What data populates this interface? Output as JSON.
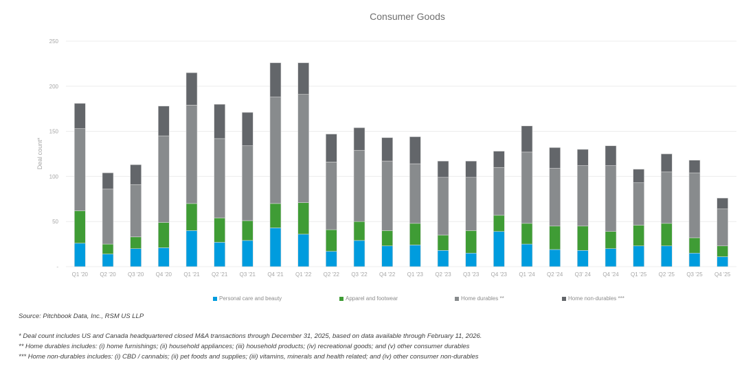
{
  "chart_data": {
    "type": "bar",
    "stacked": true,
    "title": "Consumer Goods",
    "xlabel": "",
    "ylabel": "Deal count*",
    "ylim": [
      0,
      250
    ],
    "yticks": [
      0,
      50,
      100,
      150,
      200,
      250
    ],
    "ytick_labels": [
      "-",
      "50",
      "100",
      "150",
      "200",
      "250"
    ],
    "grid": true,
    "legend_position": "bottom",
    "categories": [
      "Q1 '20",
      "Q2 '20",
      "Q3 '20",
      "Q4 '20",
      "Q1 '21",
      "Q2 '21",
      "Q3 '21",
      "Q4 '21",
      "Q1 '22",
      "Q2 '22",
      "Q3 '22",
      "Q4 '22",
      "Q1 '23",
      "Q2 '23",
      "Q3 '23",
      "Q4 '23",
      "Q1 '24",
      "Q2 '24",
      "Q3' 24",
      "Q4 '24",
      "Q1 '25",
      "Q2 '25",
      "Q3 '25",
      "Q4 '25"
    ],
    "series": [
      {
        "name": "Personal care and beauty",
        "color": "#009cde",
        "values": [
          26,
          14,
          20,
          21,
          40,
          27,
          29,
          43,
          36,
          17,
          29,
          23,
          24,
          18,
          15,
          39,
          25,
          19,
          18,
          20,
          23,
          23,
          15,
          11
        ]
      },
      {
        "name": "Apparel and footwear",
        "color": "#3f9c35",
        "values": [
          36,
          11,
          13,
          28,
          30,
          27,
          22,
          27,
          35,
          24,
          21,
          17,
          24,
          17,
          25,
          18,
          23,
          26,
          27,
          19,
          23,
          25,
          17,
          12
        ]
      },
      {
        "name": "Home durables **",
        "color": "#888b8d",
        "values": [
          91,
          61,
          58,
          96,
          109,
          88,
          83,
          118,
          120,
          75,
          79,
          77,
          66,
          64,
          59,
          53,
          79,
          64,
          67,
          73,
          47,
          57,
          72,
          41
        ]
      },
      {
        "name": "Home non-durables ***",
        "color": "#63666a",
        "values": [
          28,
          18,
          22,
          33,
          36,
          38,
          37,
          38,
          35,
          31,
          25,
          26,
          30,
          18,
          18,
          18,
          29,
          23,
          18,
          22,
          15,
          20,
          14,
          12
        ]
      }
    ]
  },
  "footnotes": {
    "source": "Source: Pitchbook Data, Inc., RSM US LLP",
    "note1": "* Deal count includes US and Canada headquartered closed M&A transactions through December 31, 2025, based on data available through February 11, 2026.",
    "note2": "** Home durables includes: (i) home furnishings; (ii) household appliances; (iii) household products; (iv) recreational goods; and (v) other consumer durables",
    "note3": "*** Home non-durables includes: (i) CBD / cannabis; (ii) pet foods and supplies; (iii) vitamins, minerals and health related; and (iv) other consumer non-durables"
  }
}
